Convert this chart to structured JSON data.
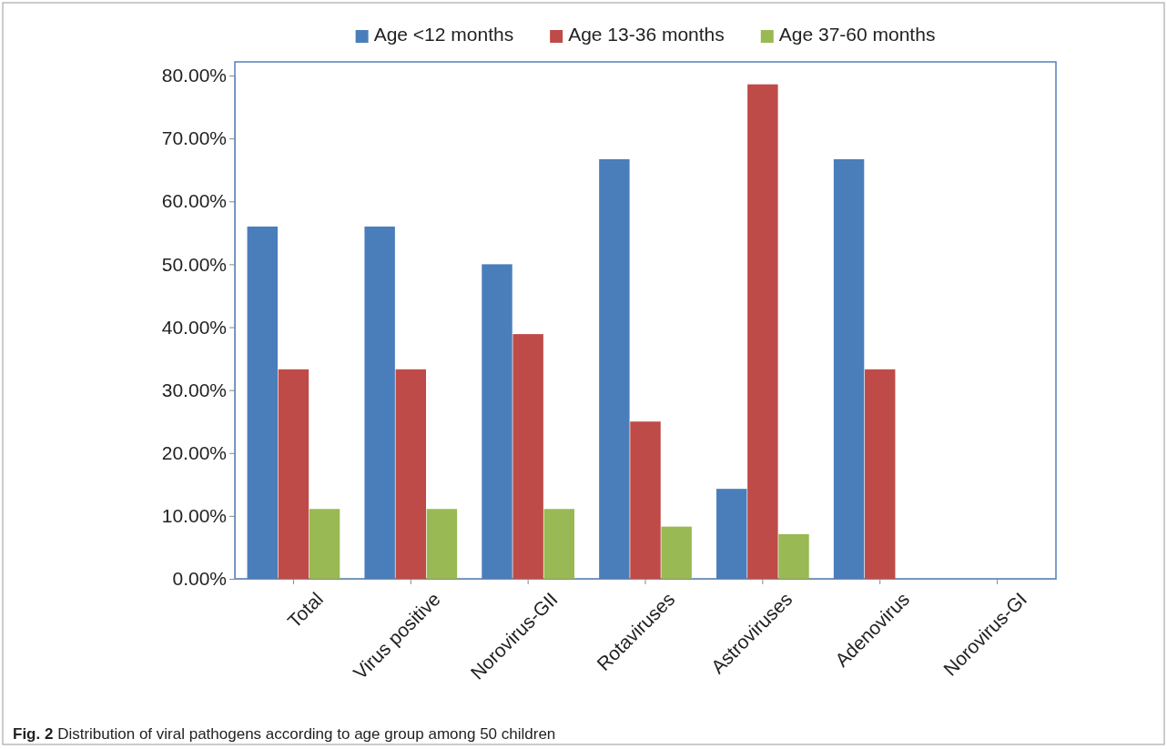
{
  "chart_data": {
    "type": "bar",
    "categories": [
      "Total",
      "Virus positive",
      "Norovirus-GII",
      "Rotaviruses",
      "Astroviruses",
      "Adenovirus",
      "Norovirus-GI"
    ],
    "series": [
      {
        "name": "Age <12 months",
        "color": "#4a7ebb",
        "values": [
          56,
          56,
          50,
          66.7,
          14.3,
          66.7,
          0
        ]
      },
      {
        "name": "Age 13-36 months",
        "color": "#be4b48",
        "values": [
          33.3,
          33.3,
          38.9,
          25,
          78.6,
          33.3,
          0
        ]
      },
      {
        "name": "Age 37-60 months",
        "color": "#98b954",
        "values": [
          11.1,
          11.1,
          11.1,
          8.3,
          7.1,
          0,
          0
        ]
      }
    ],
    "ylim": [
      0,
      80
    ],
    "yticks": [
      {
        "value": 0,
        "label": "0.00%"
      },
      {
        "value": 10,
        "label": "10.00%"
      },
      {
        "value": 20,
        "label": "20.00%"
      },
      {
        "value": 30,
        "label": "30.00%"
      },
      {
        "value": 40,
        "label": "40.00%"
      },
      {
        "value": 50,
        "label": "50.00%"
      },
      {
        "value": 60,
        "label": "60.00%"
      },
      {
        "value": 70,
        "label": "70.00%"
      },
      {
        "value": 80,
        "label": "80.00%"
      }
    ],
    "legend": "top",
    "annotations": [
      "Fig. 2",
      "Distribution of viral pathogens according to age group among 50 children"
    ]
  }
}
